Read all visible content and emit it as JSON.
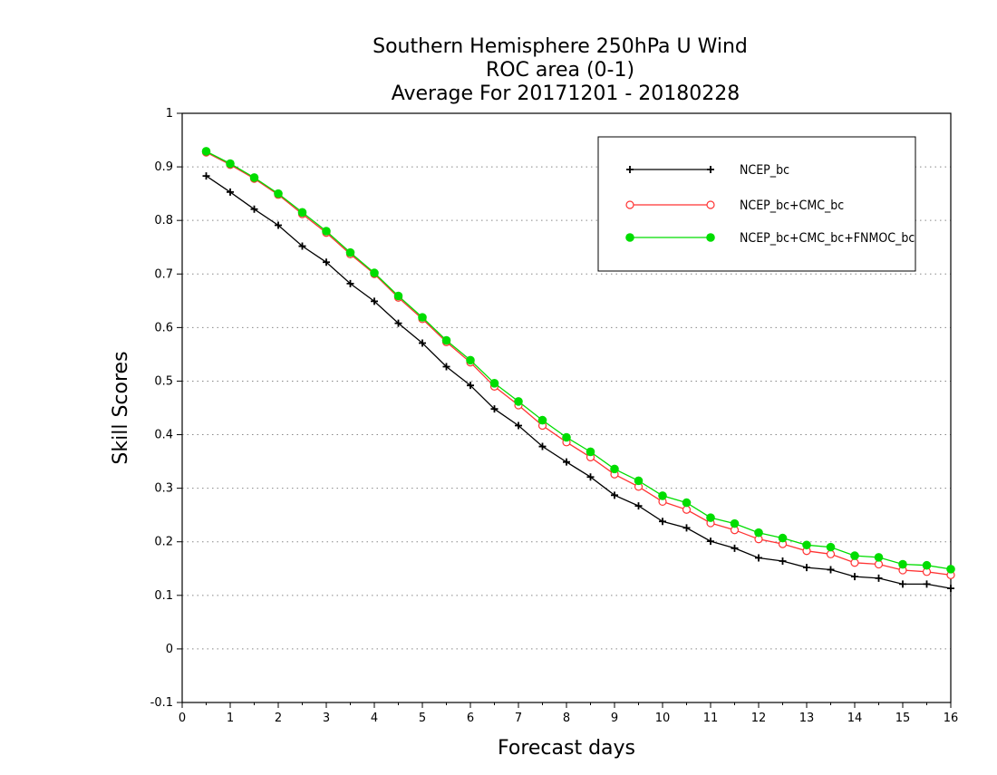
{
  "chart_data": {
    "type": "line",
    "title": [
      "Southern Hemisphere 250hPa U Wind",
      "ROC area (0-1)",
      "Average For 20171201 - 20180228"
    ],
    "xlabel": "Forecast days",
    "ylabel": "Skill Scores",
    "xlim": [
      0,
      16
    ],
    "ylim": [
      -0.1,
      1
    ],
    "xticks": [
      0,
      1,
      2,
      3,
      4,
      5,
      6,
      7,
      8,
      9,
      10,
      11,
      12,
      13,
      14,
      15,
      16
    ],
    "yticks": [
      -0.1,
      0,
      0.1,
      0.2,
      0.3,
      0.4,
      0.5,
      0.6,
      0.7,
      0.8,
      0.9,
      1
    ],
    "ytick_labels": [
      "-0.1",
      "0",
      "0.1",
      "0.2",
      "0.3",
      "0.4",
      "0.5",
      "0.6",
      "0.7",
      "0.8",
      "0.9",
      "1"
    ],
    "grid": "horizontal-dotted",
    "legend_position": "top-right",
    "x": [
      0.5,
      1.0,
      1.5,
      2.0,
      2.5,
      3.0,
      3.5,
      4.0,
      4.5,
      5.0,
      5.5,
      6.0,
      6.5,
      7.0,
      7.5,
      8.0,
      8.5,
      9.0,
      9.5,
      10.0,
      10.5,
      11.0,
      11.5,
      12.0,
      12.5,
      13.0,
      13.5,
      14.0,
      14.5,
      15.0,
      15.5,
      16.0
    ],
    "series": [
      {
        "name": "NCEP_bc",
        "color": "#000000",
        "marker": "plus",
        "values": [
          0.883,
          0.853,
          0.821,
          0.791,
          0.752,
          0.722,
          0.682,
          0.649,
          0.608,
          0.571,
          0.527,
          0.492,
          0.448,
          0.417,
          0.378,
          0.349,
          0.321,
          0.287,
          0.267,
          0.238,
          0.226,
          0.201,
          0.188,
          0.17,
          0.164,
          0.152,
          0.148,
          0.135,
          0.132,
          0.121,
          0.121,
          0.113
        ]
      },
      {
        "name": "NCEP_bc+CMC_bc",
        "color": "#ff3333",
        "marker": "open-circle",
        "values": [
          0.927,
          0.904,
          0.878,
          0.848,
          0.812,
          0.777,
          0.737,
          0.7,
          0.656,
          0.616,
          0.573,
          0.535,
          0.49,
          0.455,
          0.417,
          0.386,
          0.358,
          0.326,
          0.303,
          0.275,
          0.26,
          0.235,
          0.222,
          0.205,
          0.196,
          0.183,
          0.177,
          0.161,
          0.158,
          0.147,
          0.144,
          0.138
        ]
      },
      {
        "name": "NCEP_bc+CMC_bc+FNMOC_bc",
        "color": "#00dd00",
        "marker": "filled-circle",
        "values": [
          0.929,
          0.906,
          0.88,
          0.85,
          0.815,
          0.78,
          0.74,
          0.702,
          0.659,
          0.619,
          0.576,
          0.539,
          0.496,
          0.462,
          0.427,
          0.395,
          0.368,
          0.336,
          0.314,
          0.286,
          0.273,
          0.245,
          0.234,
          0.217,
          0.207,
          0.194,
          0.19,
          0.174,
          0.171,
          0.158,
          0.156,
          0.149
        ]
      }
    ]
  }
}
